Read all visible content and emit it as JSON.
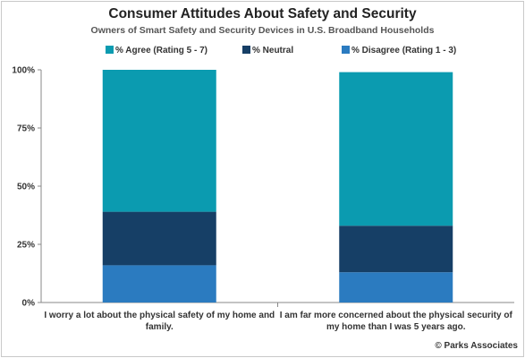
{
  "chart_data": {
    "type": "bar",
    "stacked": true,
    "title": "Consumer Attitudes About Safety and Security",
    "subtitle": "Owners of Smart Safety and Security Devices  in U.S. Broadband Households",
    "categories": [
      [
        "I worry a lot about the physical safety of my home and",
        "family."
      ],
      [
        "I am far more concerned about the physical security of",
        "my home than I was 5 years ago."
      ]
    ],
    "series": [
      {
        "name": "% Disagree  (Rating 1 - 3)",
        "color": "#2b7bc0",
        "values": [
          16,
          13
        ]
      },
      {
        "name": "% Neutral",
        "color": "#163f66",
        "values": [
          23,
          20
        ]
      },
      {
        "name": "% Agree (Rating 5 - 7)",
        "color": "#0b9bb0",
        "values": [
          61,
          66
        ]
      }
    ],
    "legend_order": [
      2,
      1,
      0
    ],
    "ylim": [
      0,
      100
    ],
    "yticks": [
      0,
      25,
      50,
      75,
      100
    ],
    "ytick_labels": [
      "0%",
      "25%",
      "50%",
      "75%",
      "100%"
    ],
    "grid": false,
    "legend_position": "top"
  },
  "footer": "© Parks Associates"
}
